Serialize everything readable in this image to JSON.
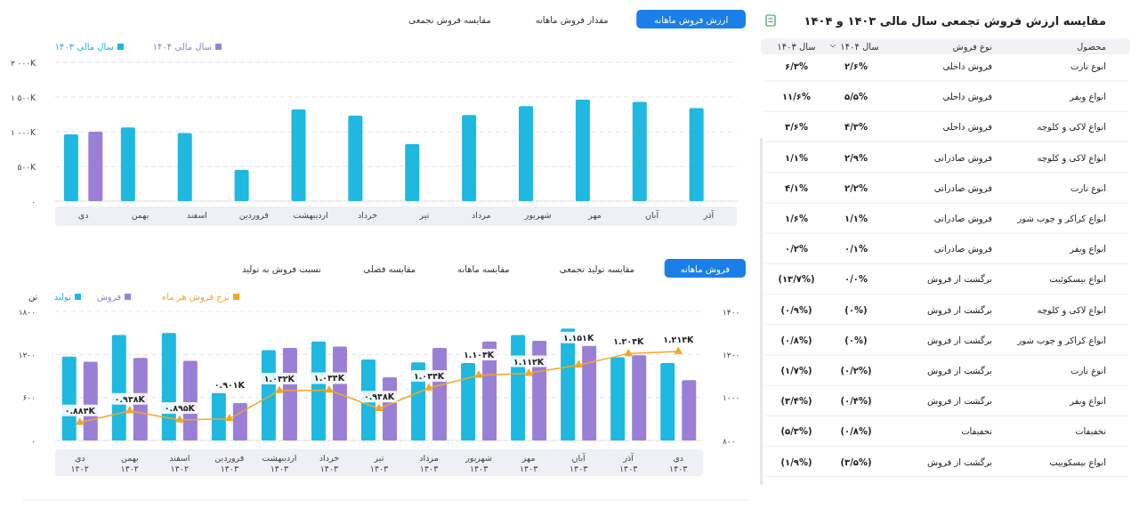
{
  "chart_data": [
    {
      "type": "bar",
      "annotations": [
        "ارزش فروش ماهانه",
        "مقدار فروش ماهانه",
        "مقایسه فروش تجمعی"
      ],
      "categories": [
        "دی",
        "بهمن",
        "اسفند",
        "فروردین",
        "اردیبهشت",
        "خرداد",
        "تیر",
        "مرداد",
        "شهریور",
        "مهر",
        "آبان",
        "آذر"
      ],
      "series": [
        {
          "name": "سال مالی ۱۴۰۳",
          "color": "#1fb8e0",
          "values": [
            960,
            1060,
            980,
            450,
            1320,
            1230,
            820,
            1240,
            1370,
            1460,
            1430,
            1340
          ]
        },
        {
          "name": "سال مالی ۱۴۰۴",
          "color": "#9a7fd6",
          "values": [
            1000,
            null,
            null,
            null,
            null,
            null,
            null,
            null,
            null,
            null,
            null,
            null
          ]
        }
      ],
      "ylim": [
        0,
        2000
      ],
      "yticks": [
        {
          "value": 0,
          "label": "۰"
        },
        {
          "value": 500,
          "label": "۵۰۰K"
        },
        {
          "value": 1000,
          "label": "۱ ۰۰۰K"
        },
        {
          "value": 1500,
          "label": "۱ ۵۰۰K"
        },
        {
          "value": 2000,
          "label": "۲ ۰۰۰K"
        }
      ],
      "grid": "y",
      "legend": "top left"
    },
    {
      "type": "bar",
      "annotations": [
        "فروش ماهانه",
        "مقایسه تولید تجمعی",
        "مقایسه ماهانه",
        "مقایسه فصلی",
        "نسبت فروش به تولید"
      ],
      "ylabel": "تن",
      "categories": [
        "دی\n۱۴۰۲",
        "بهمن\n۱۴۰۲",
        "اسفند\n۱۴۰۲",
        "فروردین\n۱۴۰۳",
        "اردیبهشت\n۱۴۰۳",
        "خرداد\n۱۴۰۳",
        "تیر\n۱۴۰۳",
        "مرداد\n۱۴۰۳",
        "شهریور\n۱۴۰۳",
        "مهر\n۱۴۰۳",
        "آبان\n۱۴۰۳",
        "آذر\n۱۴۰۳",
        "دی\n۱۴۰۳"
      ],
      "series": [
        {
          "name": "تولید",
          "color": "#1fb8e0",
          "values": [
            1170,
            1470,
            1500,
            660,
            1260,
            1380,
            1130,
            1090,
            1080,
            1470,
            1560,
            1160,
            1080
          ]
        },
        {
          "name": "فروش",
          "color": "#9a7fd6",
          "values": [
            1100,
            1150,
            1110,
            520,
            1290,
            1310,
            880,
            1290,
            1380,
            1390,
            1320,
            1190,
            840
          ]
        },
        {
          "name": "نرخ فروش هر ماه",
          "type": "line",
          "axis": "y2",
          "color": "#f5a623",
          "values": [
            884,
            938,
            895,
            901,
            1032,
            1034,
            948,
            1044,
            1103,
            1112,
            1151,
            1204,
            1214
          ],
          "value_labels": [
            "۰.۸۸۴K",
            "۰.۹۳۸K",
            "۰.۸۹۵K",
            "۰.۹۰۱K",
            "۱.۰۳۲K",
            "۱.۰۳۴K",
            "۰.۹۴۸K",
            "۱.۰۴۴K",
            "۱.۱۰۳K",
            "۱.۱۱۲K",
            "۱.۱۵۱K",
            "۱.۲۰۴K",
            "۱.۲۱۴K"
          ]
        }
      ],
      "ylim": [
        0,
        1800
      ],
      "yticks": [
        {
          "value": 0,
          "label": "۰"
        },
        {
          "value": 600,
          "label": "۶۰۰"
        },
        {
          "value": 1200,
          "label": "۱۲۰۰"
        },
        {
          "value": 1800,
          "label": "۱۸۰۰"
        }
      ],
      "y2lim": [
        800,
        1400
      ],
      "y2ticks": [
        {
          "value": 800,
          "label": "۸۰۰"
        },
        {
          "value": 1000,
          "label": "۱۰۰۰"
        },
        {
          "value": 1200,
          "label": "۱۲۰۰"
        },
        {
          "value": 1400,
          "label": "۱۴۰۰"
        }
      ],
      "marker": "triangle",
      "grid": "y",
      "legend": "top left"
    },
    {
      "type": "other",
      "title": "مقایسه ارزش فروش تجمعی سال مالی ۱۴۰۳ و ۱۴۰۴",
      "categories": [
        "سال ۱۴۰۳",
        "سال ۱۴۰۴",
        "نوع فروش",
        "محصول"
      ],
      "cell_labels": [
        [
          "۶/۳%",
          "۲/۶%",
          "فروش داخلی",
          "انوع تارت"
        ],
        [
          "۱۱/۶%",
          "۵/۵%",
          "فروش داخلی",
          "انواع ویفر"
        ],
        [
          "۳/۶%",
          "۴/۳%",
          "فروش داخلی",
          "انواع لاکی و کلوچه"
        ],
        [
          "۱/۱%",
          "۲/۹%",
          "فروش صادراتی",
          "انواع لاکی و کلوچه"
        ],
        [
          "۴/۱%",
          "۲/۲%",
          "فروش صادراتی",
          "انوع تارت"
        ],
        [
          "۱/۶%",
          "۱/۱%",
          "فروش صادراتی",
          "انواع کراکر و چوب شور"
        ],
        [
          "۰/۲%",
          "۰/۱%",
          "فروش صادراتی",
          "انواع ویفر"
        ],
        [
          "(۱۳/۷%)",
          "۰/۰%",
          "برگشت از فروش",
          "انواع بیسکوئیت"
        ],
        [
          "(۰/۹%)",
          "(۰%)",
          "برگشت از فروش",
          "انواع لاکی و کلوچه"
        ],
        [
          "(۰/۸%)",
          "(۰%)",
          "برگشت از فروش",
          "انواع کراکر و چوب شور"
        ],
        [
          "(۱/۷%)",
          "(۰/۲%)",
          "برگشت از فروش",
          "انوع تارت"
        ],
        [
          "(۳/۴%)",
          "(۰/۴%)",
          "برگشت از فروش",
          "انواع ویفر"
        ],
        [
          "(۵/۳%)",
          "(۰/۸%)",
          "تخفیفات",
          "تخفیفات"
        ],
        [
          "(۱/۹%)",
          "(۳/۵%)",
          "برگشت از فروش",
          "انواع بیسکوییت"
        ]
      ]
    }
  ]
}
